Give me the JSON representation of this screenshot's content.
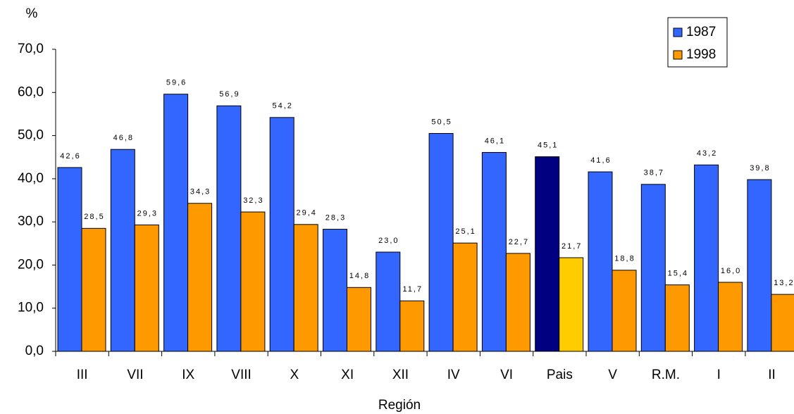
{
  "chart_data": {
    "type": "bar",
    "y_unit_label": "%",
    "x_label": "Región",
    "categories": [
      "III",
      "VII",
      "IX",
      "VIII",
      "X",
      "XI",
      "XII",
      "IV",
      "VI",
      "Pais",
      "V",
      "R.M.",
      "I",
      "II"
    ],
    "series": [
      {
        "name": "1987",
        "color": "#3366ff",
        "colors": [
          "#3366ff",
          "#3366ff",
          "#3366ff",
          "#3366ff",
          "#3366ff",
          "#3366ff",
          "#3366ff",
          "#3366ff",
          "#3366ff",
          "#000080",
          "#3366ff",
          "#3366ff",
          "#3366ff",
          "#3366ff"
        ],
        "values": [
          42.6,
          46.8,
          59.6,
          56.9,
          54.2,
          28.3,
          23.0,
          50.5,
          46.1,
          45.1,
          41.6,
          38.7,
          43.2,
          39.8
        ],
        "value_labels": [
          "42,6",
          "46,8",
          "59,6",
          "56,9",
          "54,2",
          "28,3",
          "23,0",
          "50,5",
          "46,1",
          "45,1",
          "41,6",
          "38,7",
          "43,2",
          "39,8"
        ]
      },
      {
        "name": "1998",
        "color": "#ff9900",
        "colors": [
          "#ff9900",
          "#ff9900",
          "#ff9900",
          "#ff9900",
          "#ff9900",
          "#ff9900",
          "#ff9900",
          "#ff9900",
          "#ff9900",
          "#ffcc00",
          "#ff9900",
          "#ff9900",
          "#ff9900",
          "#ff9900"
        ],
        "values": [
          28.5,
          29.3,
          34.3,
          32.3,
          29.4,
          14.8,
          11.7,
          25.1,
          22.7,
          21.7,
          18.8,
          15.4,
          16.0,
          13.2
        ],
        "value_labels": [
          "28,5",
          "29,3",
          "34,3",
          "32,3",
          "29,4",
          "14,8",
          "11,7",
          "25,1",
          "22,7",
          "21,7",
          "18,8",
          "15,4",
          "16,0",
          "13,2"
        ]
      }
    ],
    "ylim": [
      0,
      70
    ],
    "yticks": [
      {
        "value": 0,
        "label": "0,0"
      },
      {
        "value": 10,
        "label": "10,0"
      },
      {
        "value": 20,
        "label": "20,0"
      },
      {
        "value": 30,
        "label": "30,0"
      },
      {
        "value": 40,
        "label": "40,0"
      },
      {
        "value": 50,
        "label": "50,0"
      },
      {
        "value": 60,
        "label": "60,0"
      },
      {
        "value": 70,
        "label": "70,0"
      }
    ],
    "grid": false,
    "legend": "upper right"
  }
}
